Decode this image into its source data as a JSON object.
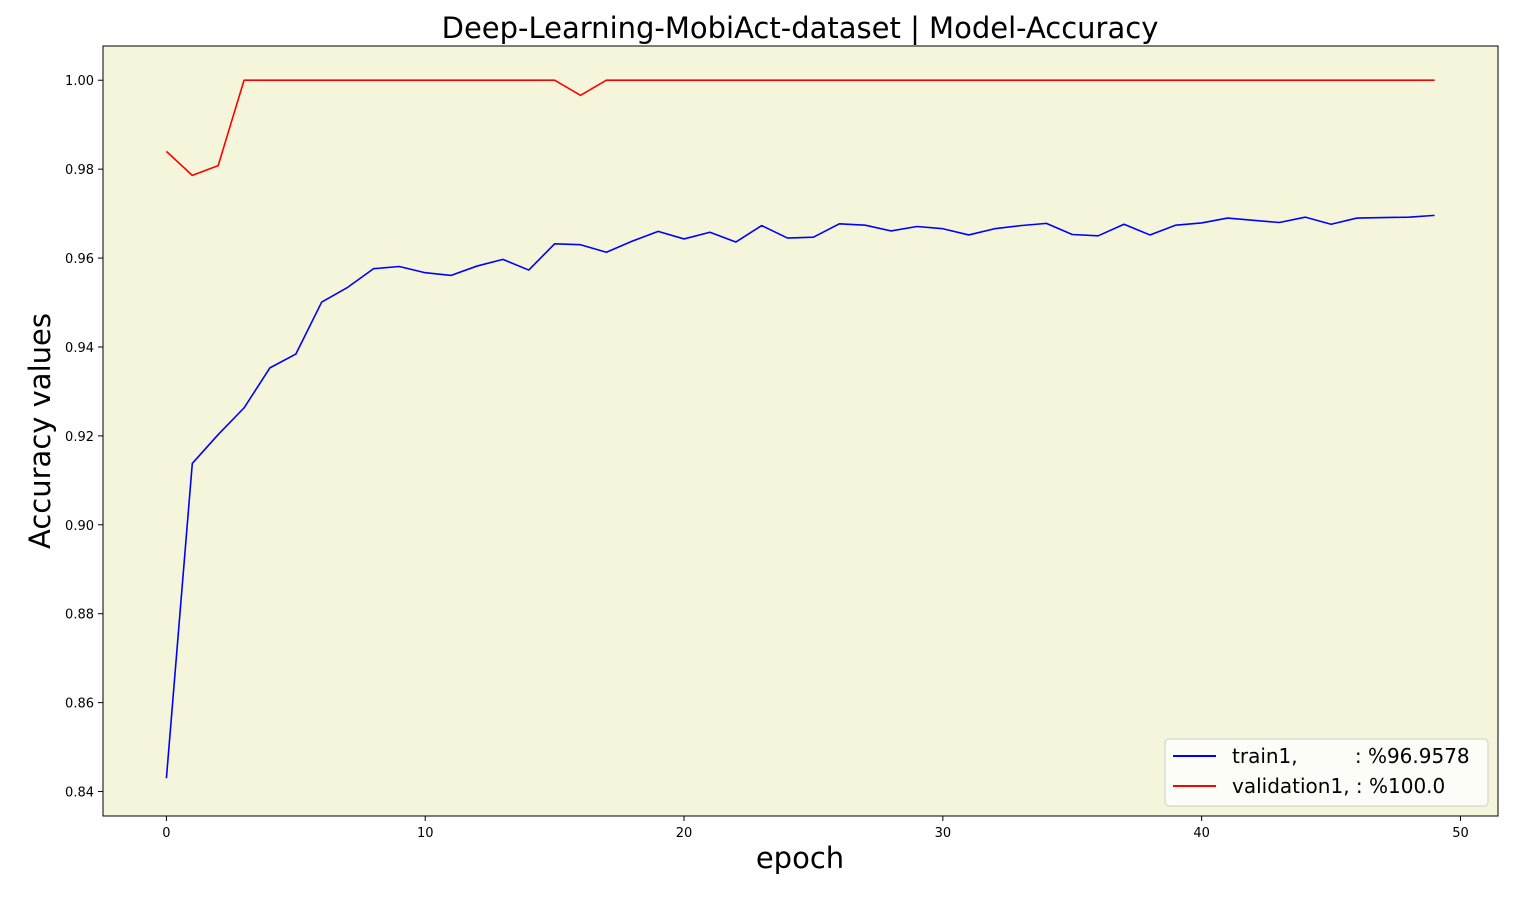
{
  "chart_data": {
    "type": "line",
    "title": "Deep-Learning-MobiAct-dataset  | Model-Accuracy",
    "xlabel": "epoch",
    "ylabel": "Accuracy values",
    "xlim": [
      -2.45,
      51.45
    ],
    "ylim": [
      0.8345,
      1.0077
    ],
    "xticks": [
      0,
      10,
      20,
      30,
      40,
      50
    ],
    "xtick_labels": [
      "0",
      "10",
      "20",
      "30",
      "40",
      "50"
    ],
    "yticks": [
      0.84,
      0.86,
      0.88,
      0.9,
      0.92,
      0.94,
      0.96,
      0.98,
      1.0
    ],
    "ytick_labels": [
      "0.84",
      "0.86",
      "0.88",
      "0.90",
      "0.92",
      "0.94",
      "0.96",
      "0.98",
      "1.00"
    ],
    "grid": false,
    "legend_position": "lower-right",
    "background_color": "#f5f5dc",
    "x": [
      0,
      1,
      2,
      3,
      4,
      5,
      6,
      7,
      8,
      9,
      10,
      11,
      12,
      13,
      14,
      15,
      16,
      17,
      18,
      19,
      20,
      21,
      22,
      23,
      24,
      25,
      26,
      27,
      28,
      29,
      30,
      31,
      32,
      33,
      34,
      35,
      36,
      37,
      38,
      39,
      40,
      41,
      42,
      43,
      44,
      45,
      46,
      47,
      48,
      49
    ],
    "series": [
      {
        "name": "train1,         : %96.9578",
        "color": "#0000ff",
        "values": [
          0.843,
          0.9138,
          0.9203,
          0.9263,
          0.9353,
          0.9384,
          0.9501,
          0.9534,
          0.9576,
          0.9581,
          0.9567,
          0.9561,
          0.9582,
          0.9597,
          0.9573,
          0.9632,
          0.963,
          0.9613,
          0.9638,
          0.966,
          0.9643,
          0.9658,
          0.9636,
          0.9673,
          0.9645,
          0.9647,
          0.9677,
          0.9674,
          0.9661,
          0.9671,
          0.9666,
          0.9652,
          0.9666,
          0.9673,
          0.9678,
          0.9653,
          0.965,
          0.9676,
          0.9652,
          0.9674,
          0.9679,
          0.969,
          0.9685,
          0.968,
          0.9692,
          0.9676,
          0.969,
          0.9691,
          0.9692,
          0.9696
        ]
      },
      {
        "name": "validation1, : %100.0",
        "color": "#ff0000",
        "values": [
          0.984,
          0.9786,
          0.9808,
          1.0,
          1.0,
          1.0,
          1.0,
          1.0,
          1.0,
          1.0,
          1.0,
          1.0,
          1.0,
          1.0,
          1.0,
          1.0,
          0.9966,
          1.0,
          1.0,
          1.0,
          1.0,
          1.0,
          1.0,
          1.0,
          1.0,
          1.0,
          1.0,
          1.0,
          1.0,
          1.0,
          1.0,
          1.0,
          1.0,
          1.0,
          1.0,
          1.0,
          1.0,
          1.0,
          1.0,
          1.0,
          1.0,
          1.0,
          1.0,
          1.0,
          1.0,
          1.0,
          1.0,
          1.0,
          1.0,
          1.0
        ]
      }
    ]
  }
}
